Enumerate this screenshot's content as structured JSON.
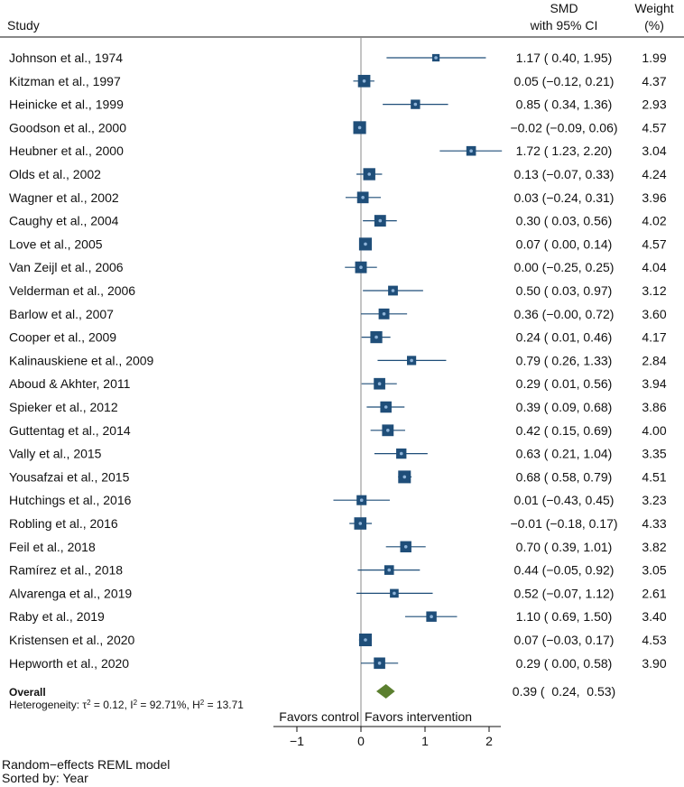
{
  "headers": {
    "study": "Study",
    "smd": "SMD",
    "ci": "with 95% CI",
    "weight": "Weight",
    "weight_unit": "(%)"
  },
  "chart_data": {
    "type": "forest",
    "xlim": [
      -1,
      2
    ],
    "xticks": [
      -1,
      0,
      1,
      2
    ],
    "xtick_labels": [
      "−1",
      "0",
      "1",
      "2"
    ],
    "xlabel_left": "Favors control",
    "xlabel_right": "Favors intervention",
    "studies": [
      {
        "name": "Johnson et al., 1974",
        "smd": 1.17,
        "lo": 0.4,
        "hi": 1.95,
        "ci_text": "1.17 (  0.40,  1.95)",
        "weight": 1.99,
        "weight_text": "1.99"
      },
      {
        "name": "Kitzman et al., 1997",
        "smd": 0.05,
        "lo": -0.12,
        "hi": 0.21,
        "ci_text": "0.05 (−0.12,  0.21)",
        "weight": 4.37,
        "weight_text": "4.37"
      },
      {
        "name": "Heinicke et al., 1999",
        "smd": 0.85,
        "lo": 0.34,
        "hi": 1.36,
        "ci_text": "0.85 (  0.34,  1.36)",
        "weight": 2.93,
        "weight_text": "2.93"
      },
      {
        "name": "Goodson et al., 2000",
        "smd": -0.02,
        "lo": -0.09,
        "hi": 0.06,
        "ci_text": "−0.02 (−0.09,  0.06)",
        "weight": 4.57,
        "weight_text": "4.57"
      },
      {
        "name": "Heubner et al., 2000",
        "smd": 1.72,
        "lo": 1.23,
        "hi": 2.2,
        "ci_text": "1.72 (  1.23,  2.20)",
        "weight": 3.04,
        "weight_text": "3.04"
      },
      {
        "name": "Olds et al., 2002",
        "smd": 0.13,
        "lo": -0.07,
        "hi": 0.33,
        "ci_text": "0.13 (−0.07,  0.33)",
        "weight": 4.24,
        "weight_text": "4.24"
      },
      {
        "name": "Wagner et al., 2002",
        "smd": 0.03,
        "lo": -0.24,
        "hi": 0.31,
        "ci_text": "0.03 (−0.24,  0.31)",
        "weight": 3.96,
        "weight_text": "3.96"
      },
      {
        "name": "Caughy et al., 2004",
        "smd": 0.3,
        "lo": 0.03,
        "hi": 0.56,
        "ci_text": "0.30 (  0.03,  0.56)",
        "weight": 4.02,
        "weight_text": "4.02"
      },
      {
        "name": "Love et al., 2005",
        "smd": 0.07,
        "lo": 0.0,
        "hi": 0.14,
        "ci_text": "0.07 (  0.00,  0.14)",
        "weight": 4.57,
        "weight_text": "4.57"
      },
      {
        "name": "Van Zeijl et al., 2006",
        "smd": 0.0,
        "lo": -0.25,
        "hi": 0.25,
        "ci_text": "0.00 (−0.25,  0.25)",
        "weight": 4.04,
        "weight_text": "4.04"
      },
      {
        "name": "Velderman et al., 2006",
        "smd": 0.5,
        "lo": 0.03,
        "hi": 0.97,
        "ci_text": "0.50 (  0.03,  0.97)",
        "weight": 3.12,
        "weight_text": "3.12"
      },
      {
        "name": "Barlow et al., 2007",
        "smd": 0.36,
        "lo": -0.0,
        "hi": 0.72,
        "ci_text": "0.36 (−0.00,  0.72)",
        "weight": 3.6,
        "weight_text": "3.60"
      },
      {
        "name": "Cooper et al., 2009",
        "smd": 0.24,
        "lo": 0.01,
        "hi": 0.46,
        "ci_text": "0.24 (  0.01,  0.46)",
        "weight": 4.17,
        "weight_text": "4.17"
      },
      {
        "name": "Kalinauskiene et al., 2009",
        "smd": 0.79,
        "lo": 0.26,
        "hi": 1.33,
        "ci_text": "0.79 (  0.26,  1.33)",
        "weight": 2.84,
        "weight_text": "2.84"
      },
      {
        "name": "Aboud & Akhter, 2011",
        "smd": 0.29,
        "lo": 0.01,
        "hi": 0.56,
        "ci_text": "0.29 (  0.01,  0.56)",
        "weight": 3.94,
        "weight_text": "3.94"
      },
      {
        "name": "Spieker et al., 2012",
        "smd": 0.39,
        "lo": 0.09,
        "hi": 0.68,
        "ci_text": "0.39 (  0.09,  0.68)",
        "weight": 3.86,
        "weight_text": "3.86"
      },
      {
        "name": "Guttentag et al., 2014",
        "smd": 0.42,
        "lo": 0.15,
        "hi": 0.69,
        "ci_text": "0.42 (  0.15,  0.69)",
        "weight": 4.0,
        "weight_text": "4.00"
      },
      {
        "name": "Vally et al., 2015",
        "smd": 0.63,
        "lo": 0.21,
        "hi": 1.04,
        "ci_text": "0.63 (  0.21,  1.04)",
        "weight": 3.35,
        "weight_text": "3.35"
      },
      {
        "name": "Yousafzai et al., 2015",
        "smd": 0.68,
        "lo": 0.58,
        "hi": 0.79,
        "ci_text": "0.68 (  0.58,  0.79)",
        "weight": 4.51,
        "weight_text": "4.51"
      },
      {
        "name": "Hutchings et al., 2016",
        "smd": 0.01,
        "lo": -0.43,
        "hi": 0.45,
        "ci_text": "0.01 (−0.43,  0.45)",
        "weight": 3.23,
        "weight_text": "3.23"
      },
      {
        "name": "Robling et al., 2016",
        "smd": -0.01,
        "lo": -0.18,
        "hi": 0.17,
        "ci_text": "−0.01 (−0.18,  0.17)",
        "weight": 4.33,
        "weight_text": "4.33"
      },
      {
        "name": "Feil et al., 2018",
        "smd": 0.7,
        "lo": 0.39,
        "hi": 1.01,
        "ci_text": "0.70 (  0.39,  1.01)",
        "weight": 3.82,
        "weight_text": "3.82"
      },
      {
        "name": "Ramírez et al., 2018",
        "smd": 0.44,
        "lo": -0.05,
        "hi": 0.92,
        "ci_text": "0.44 (−0.05,  0.92)",
        "weight": 3.05,
        "weight_text": "3.05"
      },
      {
        "name": "Alvarenga et al., 2019",
        "smd": 0.52,
        "lo": -0.07,
        "hi": 1.12,
        "ci_text": "0.52 (−0.07,  1.12)",
        "weight": 2.61,
        "weight_text": "2.61"
      },
      {
        "name": "Raby et al., 2019",
        "smd": 1.1,
        "lo": 0.69,
        "hi": 1.5,
        "ci_text": "1.10 (  0.69,  1.50)",
        "weight": 3.4,
        "weight_text": "3.40"
      },
      {
        "name": "Kristensen et al., 2020",
        "smd": 0.07,
        "lo": -0.03,
        "hi": 0.17,
        "ci_text": "0.07 (−0.03,  0.17)",
        "weight": 4.53,
        "weight_text": "4.53"
      },
      {
        "name": "Hepworth et al., 2020",
        "smd": 0.29,
        "lo": 0.0,
        "hi": 0.58,
        "ci_text": "0.29 (  0.00,  0.58)",
        "weight": 3.9,
        "weight_text": "3.90"
      }
    ],
    "overall": {
      "label": "Overall",
      "smd": 0.39,
      "lo": 0.24,
      "hi": 0.53,
      "ci_text": "0.39 (  0.24,  0.53)",
      "heterogeneity_prefix": "Heterogeneity: τ",
      "heterogeneity_tau2": "2",
      "heterogeneity_mid": " = 0.12, I",
      "heterogeneity_i2": "2",
      "heterogeneity_mid2": " = 92.71%, H",
      "heterogeneity_h2": "2",
      "heterogeneity_end": " = 13.71"
    }
  },
  "footnotes": {
    "model": "Random−effects REML model",
    "sorted": "Sorted by: Year"
  },
  "colors": {
    "square": "#1f4e79",
    "line": "#1f4e79",
    "diamond": "#5b7f2f",
    "dot": "#8fb4d9",
    "axis": "#111111"
  }
}
